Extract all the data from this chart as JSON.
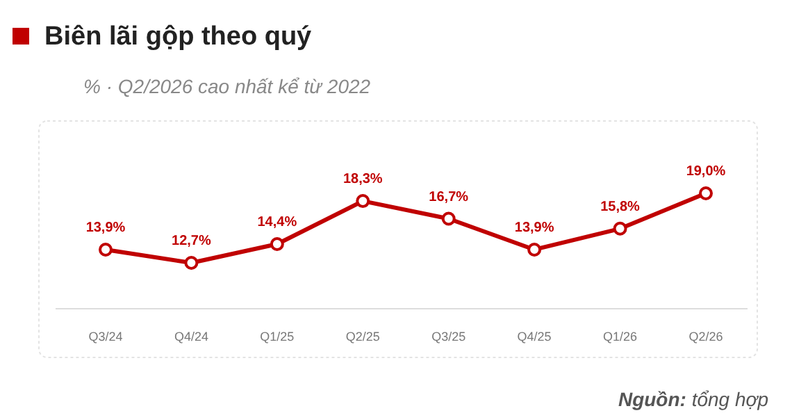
{
  "chart_data": {
    "type": "line",
    "title": "Biên lãi gộp theo quý",
    "subtitle": "% · Q2/2026 cao nhất kể từ 2022",
    "categories": [
      "Q3/24",
      "Q4/24",
      "Q1/25",
      "Q2/25",
      "Q3/25",
      "Q4/25",
      "Q1/26",
      "Q2/26"
    ],
    "series": [
      {
        "color": "#c00000",
        "values": [
          13.9,
          12.7,
          14.4,
          18.3,
          16.7,
          13.9,
          15.8,
          19.0
        ],
        "value_labels": [
          "13,9%",
          "12,7%",
          "14,4%",
          "18,3%",
          "16,7%",
          "13,9%",
          "15,8%",
          "19,0%"
        ]
      }
    ],
    "tick_labels": "x",
    "marker": "circle",
    "line_style": "solid",
    "annotations": [
      "Nguồn: tổng hợp"
    ]
  }
}
